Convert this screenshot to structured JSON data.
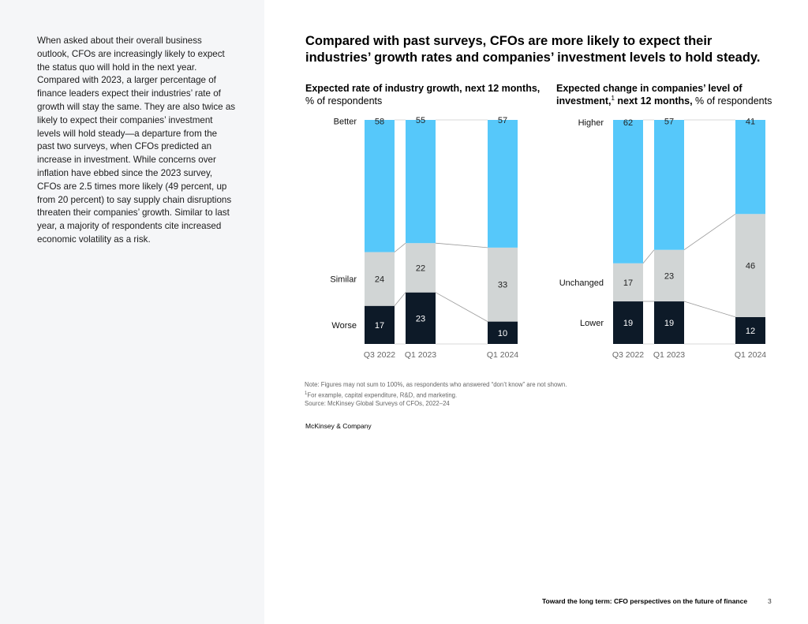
{
  "body_text": "When asked about their overall business outlook, CFOs are increasingly likely to expect the status quo will hold in the next year. Compared with 2023, a larger percentage of finance leaders expect their industries’ rate of growth will stay the same. They are also twice as likely to expect their companies’ investment levels will hold steady—a departure from the past two surveys, when CFOs predicted an increase in investment. While concerns over inflation have ebbed since the 2023 survey, CFOs are 2.5 times more likely (49 percent, up from 20 percent) to say supply chain disruptions threaten their companies’ growth. Similar to last year, a majority of respondents cite increased economic volatility as a risk.",
  "main_title": "Compared with past surveys, CFOs are more likely to expect their industries’ growth rates and companies’ investment levels to hold steady.",
  "colors": {
    "top": "#56c8fa",
    "middle": "#d1d5d5",
    "bottom": "#0d1a28",
    "connector": "#9a9a9a",
    "frame": "#d9d9d9"
  },
  "chart_data": [
    {
      "type": "bar",
      "stacked": true,
      "title_bold": "Expected rate of industry growth, next 12 months,",
      "title_rest": " % of respondents",
      "categories": [
        "Q3 2022",
        "Q1 2023",
        "Q1 2024"
      ],
      "series": [
        {
          "name": "Worse",
          "values": [
            17,
            23,
            10
          ]
        },
        {
          "name": "Similar",
          "values": [
            24,
            22,
            33
          ]
        },
        {
          "name": "Better",
          "values": [
            58,
            55,
            57
          ]
        }
      ],
      "ylim": [
        0,
        100
      ],
      "unit": "% of respondents"
    },
    {
      "type": "bar",
      "stacked": true,
      "title_bold_a": "Expected change in companies’ level of investment,",
      "title_sup": "1",
      "title_bold_b": " next 12 months,",
      "title_rest": " % of respondents",
      "categories": [
        "Q3 2022",
        "Q1 2023",
        "Q1 2024"
      ],
      "series": [
        {
          "name": "Lower",
          "values": [
            19,
            19,
            12
          ]
        },
        {
          "name": "Unchanged",
          "values": [
            17,
            23,
            46
          ]
        },
        {
          "name": "Higher",
          "values": [
            62,
            57,
            41
          ]
        }
      ],
      "ylim": [
        0,
        100
      ],
      "unit": "% of respondents"
    }
  ],
  "notes": {
    "note": "Note: Figures may not sum to 100%, as respondents who answered “don’t know” are not shown.",
    "footnote_mark": "1",
    "footnote": "For example, capital expenditure, R&D, and marketing.",
    "source": "Source: McKinsey Global Surveys of CFOs, 2022–24"
  },
  "brand": "McKinsey & Company",
  "footer": {
    "title": "Toward the long term: CFO perspectives on the future of finance",
    "page": "3"
  }
}
